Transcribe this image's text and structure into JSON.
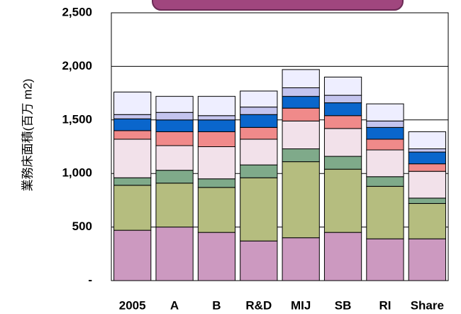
{
  "chart_data": {
    "type": "stacked_bar",
    "y_label": "業務床面積(百万 m2)",
    "categories": [
      "2005",
      "A",
      "B",
      "R&D",
      "MIJ",
      "SB",
      "RI",
      "Share"
    ],
    "series": [
      {
        "color": "#cc99c0",
        "values": [
          470,
          500,
          450,
          370,
          400,
          450,
          390,
          390
        ]
      },
      {
        "color": "#b5bd7f",
        "values": [
          420,
          410,
          420,
          590,
          710,
          590,
          490,
          330
        ]
      },
      {
        "color": "#7faa8a",
        "values": [
          70,
          120,
          80,
          120,
          120,
          120,
          90,
          50
        ]
      },
      {
        "color": "#f2e1ea",
        "values": [
          360,
          230,
          300,
          240,
          260,
          260,
          250,
          250
        ]
      },
      {
        "color": "#f08a8a",
        "values": [
          80,
          130,
          140,
          110,
          120,
          120,
          100,
          70
        ]
      },
      {
        "color": "#0a66cc",
        "values": [
          110,
          110,
          110,
          120,
          110,
          120,
          110,
          110
        ]
      },
      {
        "color": "#c4c4ee",
        "values": [
          40,
          70,
          40,
          70,
          80,
          70,
          60,
          30
        ]
      },
      {
        "color": "#eeeeff",
        "values": [
          210,
          150,
          180,
          150,
          170,
          170,
          160,
          160
        ]
      }
    ],
    "ylim": [
      0,
      2500
    ],
    "yticks": [
      {
        "value": 0,
        "label": "-"
      },
      500,
      {
        "value": 1000,
        "label": "1,000"
      },
      {
        "value": 1500,
        "label": "1,500"
      },
      {
        "value": 2000,
        "label": "2,000"
      },
      {
        "value": 2500,
        "label": "2,500"
      }
    ],
    "grid": true
  }
}
